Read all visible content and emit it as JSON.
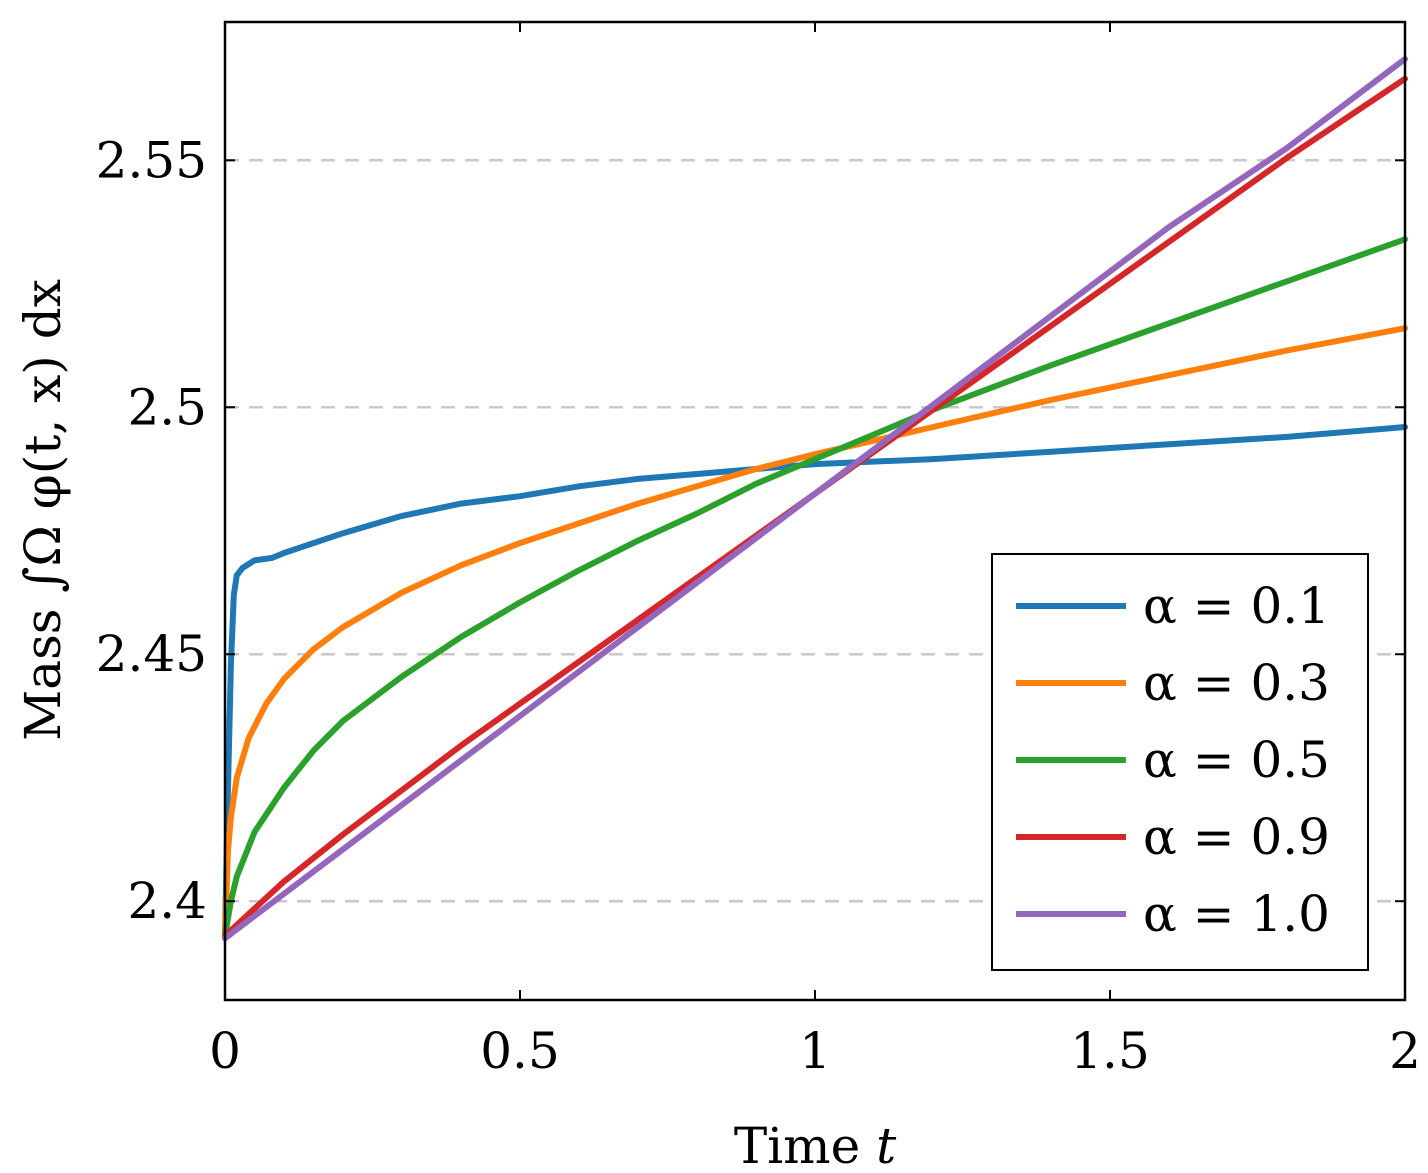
{
  "chart_data": {
    "type": "line",
    "title": "",
    "xlabel": "Time t",
    "ylabel": "Mass ∫Ω φ(t, x) dx",
    "xlim": [
      0,
      2
    ],
    "ylim": [
      2.38,
      2.578
    ],
    "x_ticks": [
      0,
      0.5,
      1,
      1.5,
      2
    ],
    "x_tick_labels": [
      "0",
      "0.5",
      "1",
      "1.5",
      "2"
    ],
    "y_ticks": [
      2.4,
      2.45,
      2.5,
      2.55
    ],
    "y_tick_labels": [
      "2.4",
      "2.45",
      "2.5",
      "2.55"
    ],
    "grid": "horizontal dashed",
    "legend_position": "bottom-right",
    "series": [
      {
        "name": "α = 0.1",
        "color": "#1f77b4",
        "x": [
          0,
          0.005,
          0.01,
          0.015,
          0.02,
          0.03,
          0.05,
          0.08,
          0.1,
          0.2,
          0.3,
          0.4,
          0.5,
          0.6,
          0.7,
          0.8,
          0.9,
          1.0,
          1.2,
          1.4,
          1.6,
          1.8,
          2.0
        ],
        "y": [
          2.393,
          2.422,
          2.448,
          2.462,
          2.466,
          2.4675,
          2.469,
          2.4695,
          2.4705,
          2.4745,
          2.478,
          2.4805,
          2.482,
          2.484,
          2.4855,
          2.4865,
          2.4875,
          2.4885,
          2.4895,
          2.491,
          2.4925,
          2.494,
          2.496
        ]
      },
      {
        "name": "α = 0.3",
        "color": "#ff7f0e",
        "x": [
          0,
          0.005,
          0.01,
          0.02,
          0.04,
          0.07,
          0.1,
          0.15,
          0.2,
          0.3,
          0.4,
          0.5,
          0.6,
          0.7,
          0.8,
          0.9,
          1.0,
          1.2,
          1.4,
          1.6,
          1.8,
          2.0
        ],
        "y": [
          2.393,
          2.41,
          2.417,
          2.425,
          2.433,
          2.44,
          2.445,
          2.451,
          2.4555,
          2.4625,
          2.468,
          2.4725,
          2.4765,
          2.4805,
          2.484,
          2.4875,
          2.4905,
          2.496,
          2.5015,
          2.5065,
          2.5115,
          2.516
        ]
      },
      {
        "name": "α = 0.5",
        "color": "#2ca02c",
        "x": [
          0,
          0.01,
          0.02,
          0.05,
          0.1,
          0.15,
          0.2,
          0.3,
          0.4,
          0.5,
          0.6,
          0.7,
          0.8,
          0.9,
          1.0,
          1.2,
          1.4,
          1.6,
          1.8,
          2.0
        ],
        "y": [
          2.393,
          2.4,
          2.405,
          2.414,
          2.423,
          2.4305,
          2.4365,
          2.4455,
          2.4535,
          2.4605,
          2.467,
          2.473,
          2.4785,
          2.4845,
          2.4895,
          2.4995,
          2.5085,
          2.517,
          2.5255,
          2.534
        ]
      },
      {
        "name": "α = 0.9",
        "color": "#d62728",
        "x": [
          0,
          0.05,
          0.1,
          0.2,
          0.3,
          0.4,
          0.5,
          0.6,
          0.7,
          0.8,
          0.9,
          1.0,
          1.1,
          1.2,
          1.3,
          1.4,
          1.5,
          1.6,
          1.7,
          1.8,
          1.9,
          2.0
        ],
        "y": [
          2.393,
          2.3985,
          2.404,
          2.4135,
          2.4225,
          2.4315,
          2.44,
          2.4485,
          2.457,
          2.4655,
          2.474,
          2.4825,
          2.491,
          2.4995,
          2.508,
          2.5165,
          2.525,
          2.5335,
          2.542,
          2.5505,
          2.5585,
          2.5665
        ]
      },
      {
        "name": "α = 1.0",
        "color": "#9467bd",
        "x": [
          0,
          0.2,
          0.4,
          0.6,
          0.8,
          1.0,
          1.2,
          1.4,
          1.6,
          1.8,
          2.0
        ],
        "y": [
          2.3925,
          2.4105,
          2.4285,
          2.4465,
          2.4645,
          2.4825,
          2.5005,
          2.5185,
          2.5365,
          2.5525,
          2.5705
        ]
      }
    ]
  }
}
